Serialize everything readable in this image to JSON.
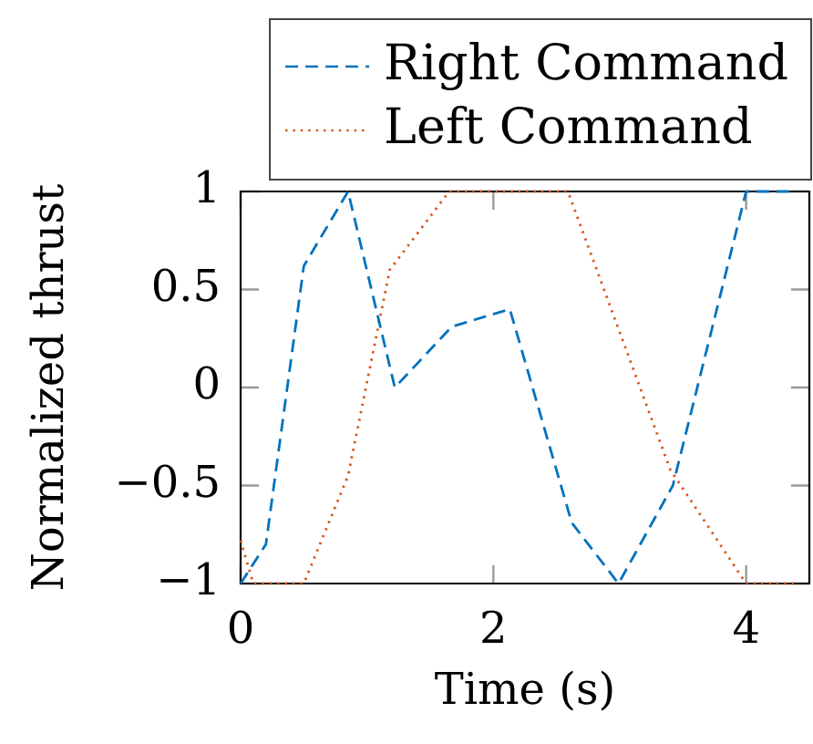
{
  "chart_data": {
    "type": "line",
    "xlabel": "Time (s)",
    "ylabel": "Normalized thrust",
    "xlim": [
      0,
      4.5
    ],
    "ylim": [
      -1,
      1
    ],
    "xticks": [
      0,
      2,
      4
    ],
    "yticks": [
      {
        "value": -1,
        "label": "−1"
      },
      {
        "value": -0.5,
        "label": "−0.5"
      },
      0,
      0.5,
      1
    ],
    "legend": "top right",
    "marker": "none",
    "series": [
      {
        "name": "Right Command",
        "color": "#0072bd",
        "line_style": "dashed",
        "x": [
          0,
          0.2,
          0.5,
          0.85,
          1.22,
          1.67,
          2.13,
          2.62,
          2.99,
          3.42,
          4.0,
          4.4
        ],
        "values": [
          -1,
          -0.8,
          0.62,
          1,
          0,
          0.31,
          0.4,
          -0.69,
          -1,
          -0.5,
          1,
          1
        ]
      },
      {
        "name": "Left Command",
        "color": "#d95319",
        "line_style": "dotted",
        "x": [
          0,
          0.1,
          0.5,
          0.85,
          1.18,
          1.65,
          2.59,
          3.4,
          4.0,
          4.4
        ],
        "values": [
          -0.78,
          -1,
          -1,
          -0.45,
          0.6,
          1,
          1,
          -0.42,
          -1,
          -1
        ]
      }
    ]
  }
}
